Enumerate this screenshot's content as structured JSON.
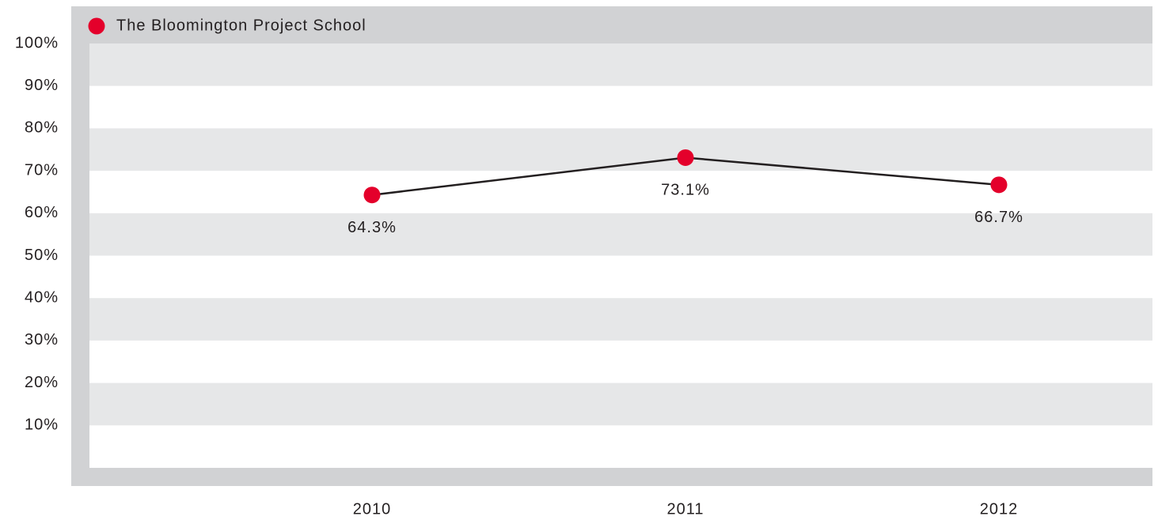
{
  "chart_data": {
    "type": "line",
    "categories": [
      "2010",
      "2011",
      "2012"
    ],
    "series": [
      {
        "name": "The Bloomington Project School",
        "color": "#e4002b",
        "line_color": "#231f20",
        "values": [
          64.3,
          73.1,
          66.7
        ],
        "value_labels": [
          "64.3%",
          "73.1%",
          "66.7%"
        ]
      }
    ],
    "ylim": [
      0,
      100
    ],
    "yticks": [
      {
        "value": 10,
        "label": "10%"
      },
      {
        "value": 20,
        "label": "20%"
      },
      {
        "value": 30,
        "label": "30%"
      },
      {
        "value": 40,
        "label": "40%"
      },
      {
        "value": 50,
        "label": "50%"
      },
      {
        "value": 60,
        "label": "60%"
      },
      {
        "value": 70,
        "label": "70%"
      },
      {
        "value": 80,
        "label": "80%"
      },
      {
        "value": 90,
        "label": "90%"
      },
      {
        "value": 100,
        "label": "100%"
      }
    ],
    "grid": "bands",
    "legend": "top-left"
  }
}
